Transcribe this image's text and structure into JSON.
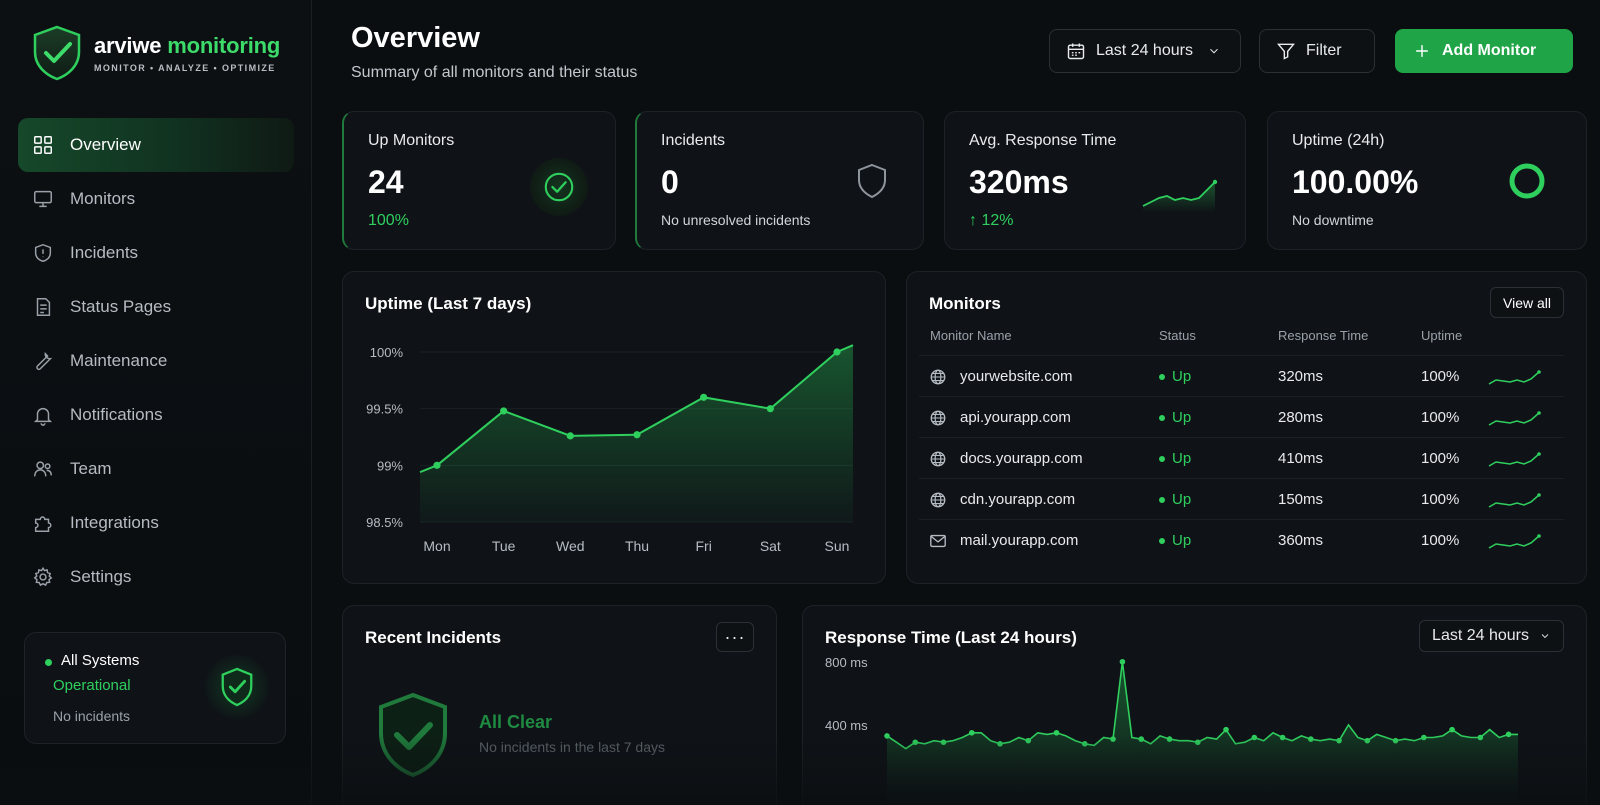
{
  "brand": {
    "name_main": "arviwe",
    "name_accent": "monitoring",
    "tagline": "MONITOR • ANALYZE • OPTIMIZE"
  },
  "sidebar": {
    "items": [
      {
        "label": "Overview",
        "icon": "grid-icon"
      },
      {
        "label": "Monitors",
        "icon": "monitor-icon"
      },
      {
        "label": "Incidents",
        "icon": "shield-alert-icon"
      },
      {
        "label": "Status Pages",
        "icon": "document-icon"
      },
      {
        "label": "Maintenance",
        "icon": "wrench-icon"
      },
      {
        "label": "Notifications",
        "icon": "bell-icon"
      },
      {
        "label": "Team",
        "icon": "users-icon"
      },
      {
        "label": "Integrations",
        "icon": "puzzle-icon"
      },
      {
        "label": "Settings",
        "icon": "gear-icon"
      }
    ],
    "status": {
      "title": "All Systems",
      "state": "Operational",
      "detail": "No incidents"
    }
  },
  "header": {
    "title": "Overview",
    "subtitle": "Summary of all monitors and their status",
    "range_label": "Last 24 hours",
    "filter_label": "Filter",
    "add_label": "Add Monitor"
  },
  "stats": {
    "up": {
      "label": "Up Monitors",
      "value": "24",
      "sub": "100%"
    },
    "incidents": {
      "label": "Incidents",
      "value": "0",
      "sub": "No unresolved incidents"
    },
    "response": {
      "label": "Avg. Response Time",
      "value": "320ms",
      "sub": "↑ 12%"
    },
    "uptime": {
      "label": "Uptime (24h)",
      "value": "100.00%",
      "sub": "No downtime"
    }
  },
  "uptime_chart": {
    "title": "Uptime (Last 7 days)"
  },
  "monitors": {
    "title": "Monitors",
    "view_all": "View all",
    "columns": [
      "Monitor Name",
      "Status",
      "Response Time",
      "Uptime"
    ],
    "rows": [
      {
        "icon": "globe-icon",
        "name": "yourwebsite.com",
        "status": "Up",
        "response": "320ms",
        "uptime": "100%"
      },
      {
        "icon": "globe-icon",
        "name": "api.yourapp.com",
        "status": "Up",
        "response": "280ms",
        "uptime": "100%"
      },
      {
        "icon": "globe-icon",
        "name": "docs.yourapp.com",
        "status": "Up",
        "response": "410ms",
        "uptime": "100%"
      },
      {
        "icon": "globe-icon",
        "name": "cdn.yourapp.com",
        "status": "Up",
        "response": "150ms",
        "uptime": "100%"
      },
      {
        "icon": "mail-icon",
        "name": "mail.yourapp.com",
        "status": "Up",
        "response": "360ms",
        "uptime": "100%"
      }
    ]
  },
  "recent_incidents": {
    "title": "Recent Incidents",
    "more": "···",
    "empty_title": "All Clear",
    "empty_sub": "No incidents in the last 7 days"
  },
  "response_chart": {
    "title": "Response Time (Last 24 hours)",
    "range": "Last 24 hours"
  },
  "colors": {
    "accent": "#2fcf5e",
    "bg": "#0b0e11",
    "card": "#0f1317",
    "button": "#1fa447"
  },
  "chart_data": [
    {
      "type": "area",
      "title": "Uptime (Last 7 days)",
      "categories": [
        "Mon",
        "Tue",
        "Wed",
        "Thu",
        "Fri",
        "Sat",
        "Sun"
      ],
      "x": [
        "Mon",
        "Tue",
        "Wed",
        "Thu",
        "Fri",
        "Sat",
        "Sun"
      ],
      "values": [
        99.0,
        99.48,
        99.26,
        99.27,
        99.6,
        99.5,
        100.0
      ],
      "y_ticks": [
        "100%",
        "99.5%",
        "99%",
        "98.5%"
      ],
      "ylim": [
        98.5,
        100
      ],
      "grid": true
    },
    {
      "type": "area",
      "title": "Response Time (Last 24 hours)",
      "y_ticks": [
        "800 ms",
        "400 ms"
      ],
      "values": [
        330,
        290,
        250,
        290,
        280,
        300,
        290,
        300,
        320,
        350,
        350,
        300,
        280,
        290,
        320,
        300,
        350,
        340,
        350,
        330,
        300,
        280,
        270,
        320,
        310,
        800,
        320,
        310,
        280,
        330,
        310,
        300,
        300,
        290,
        320,
        310,
        370,
        280,
        290,
        320,
        300,
        350,
        320,
        300,
        330,
        310,
        300,
        310,
        300,
        400,
        320,
        300,
        340,
        320,
        300,
        310,
        300,
        320,
        320,
        330,
        370,
        330,
        320,
        320,
        370,
        320,
        340,
        340
      ],
      "ylim": [
        0,
        900
      ],
      "grid": false
    }
  ]
}
